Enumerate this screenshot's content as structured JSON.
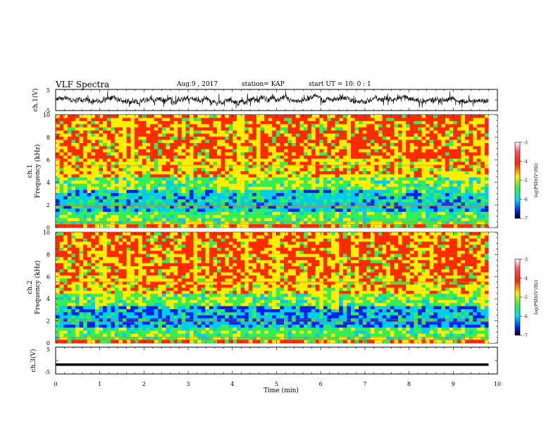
{
  "header": {
    "title": "VLF Spectra",
    "date": "Aug.9 , 2017",
    "station": "station= KAP",
    "start": "start UT = 10: 0 : 1"
  },
  "chart_data": [
    {
      "type": "line",
      "panel": "ch1-waveform",
      "ylabel": "ch.1(V)",
      "yticks": [
        "5",
        "-5"
      ],
      "ylim": [
        -5,
        5
      ],
      "xlim": [
        0,
        10
      ],
      "signal_range": [
        -5,
        5
      ]
    },
    {
      "type": "heatmap",
      "panel": "ch1-spectrogram",
      "ylabel_channel": "ch.1",
      "ylabel": "Frequency (kHz)",
      "yticks": [
        "0",
        "2",
        "4",
        "6",
        "8",
        "10"
      ],
      "ylim": [
        0,
        10
      ],
      "xlim": [
        0,
        9.8
      ],
      "colorbar": {
        "label": "log(PSD)(V²/Hz)",
        "ticks": [
          "-3",
          "-4",
          "-5",
          "-6",
          "-7"
        ],
        "range": [
          -7,
          -3
        ]
      }
    },
    {
      "type": "heatmap",
      "panel": "ch2-spectrogram",
      "ylabel_channel": "ch.2",
      "ylabel": "Frequency (kHz)",
      "yticks": [
        "0",
        "2",
        "4",
        "6",
        "8",
        "10"
      ],
      "ylim": [
        0,
        10
      ],
      "xlim": [
        0,
        9.8
      ],
      "colorbar": {
        "label": "log(PSD)(V²/Hz)",
        "ticks": [
          "-3",
          "-4",
          "-5",
          "-6",
          "-7"
        ],
        "range": [
          -7,
          -3
        ]
      }
    },
    {
      "type": "line",
      "panel": "ch3-waveform",
      "ylabel": "ch.3(V)",
      "yticks": [
        "5",
        "-5"
      ],
      "ylim": [
        -5,
        5
      ],
      "xlim": [
        0,
        10
      ],
      "signal_level": -1.5
    }
  ],
  "x_axis": {
    "label": "Time (min)",
    "ticks": [
      "0",
      "1",
      "2",
      "3",
      "4",
      "5",
      "6",
      "7",
      "8",
      "9",
      "10"
    ],
    "range": [
      0,
      10
    ]
  },
  "colors": {
    "red": "#ff2a00",
    "yellow": "#ffee00",
    "green": "#33ee55",
    "cyan": "#00ccee",
    "blue": "#0022ee"
  }
}
